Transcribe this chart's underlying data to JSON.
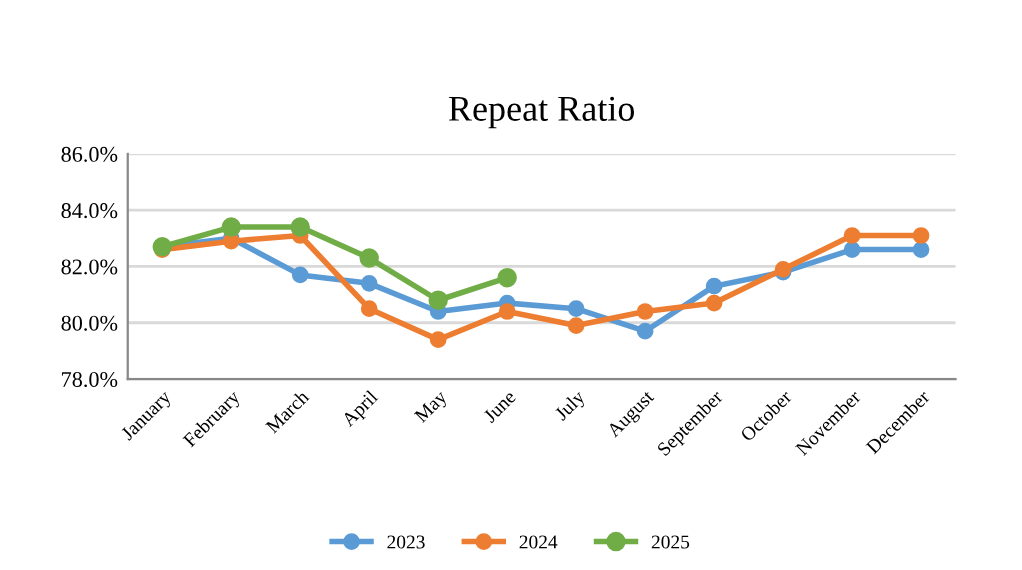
{
  "chart_data": {
    "type": "line",
    "title": "Repeat Ratio",
    "categories": [
      "January",
      "February",
      "March",
      "April",
      "May",
      "June",
      "July",
      "August",
      "September",
      "October",
      "November",
      "December"
    ],
    "series": [
      {
        "name": "2023",
        "color": "#5b9bd5",
        "values": [
          82.7,
          83.0,
          81.7,
          81.4,
          80.4,
          80.7,
          80.5,
          79.7,
          81.3,
          81.8,
          82.6,
          82.6
        ]
      },
      {
        "name": "2024",
        "color": "#ed7d31",
        "values": [
          82.6,
          82.9,
          83.1,
          80.5,
          79.4,
          80.4,
          79.9,
          80.4,
          80.7,
          81.9,
          83.1,
          83.1
        ]
      },
      {
        "name": "2025",
        "color": "#70ad47",
        "values": [
          82.7,
          83.4,
          83.4,
          82.3,
          80.8,
          81.6,
          null,
          null,
          null,
          null,
          null,
          null
        ]
      }
    ],
    "ylim": [
      78,
      86
    ],
    "yticks": [
      {
        "value": 78,
        "label": "78.0%"
      },
      {
        "value": 80,
        "label": "80.0%"
      },
      {
        "value": 82,
        "label": "82.0%"
      },
      {
        "value": 84,
        "label": "84.0%"
      },
      {
        "value": 86,
        "label": "86.0%"
      }
    ],
    "grid": "y",
    "legend": "bottom",
    "marker": "circle",
    "line_style": "solid"
  }
}
